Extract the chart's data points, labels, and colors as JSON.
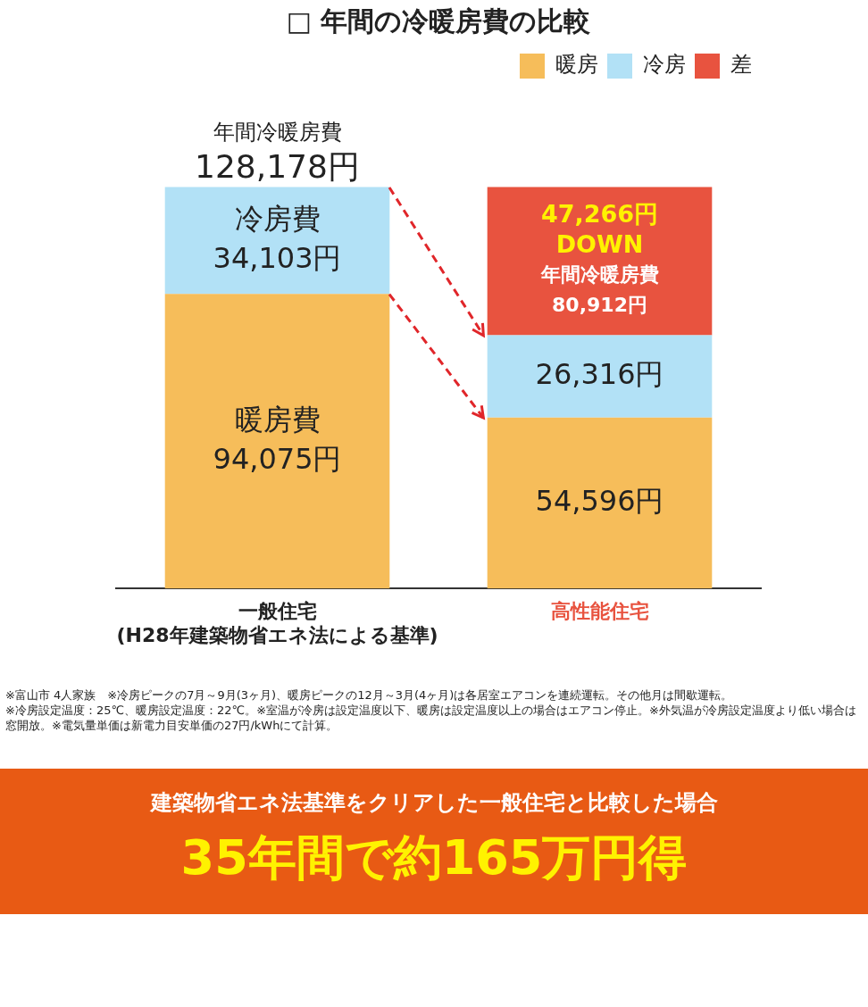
{
  "chart_data": {
    "type": "bar",
    "stacked": true,
    "title": "□ 年間の冷暖房費の比較",
    "legend": "top right",
    "categories": [
      "一般住宅\n(H28年建築物省エネ法による基準)",
      "高性能住宅"
    ],
    "series": [
      {
        "name": "暖房",
        "color": "#f6bd5a",
        "values": [
          94075,
          54596
        ],
        "value_labels": [
          "暖房費\n94,075円",
          "54,596円"
        ]
      },
      {
        "name": "冷房",
        "color": "#b2e1f6",
        "values": [
          34103,
          26316
        ],
        "value_labels": [
          "冷房費\n34,103円",
          "26,316円"
        ]
      },
      {
        "name": "差",
        "color": "#e8533f",
        "values": [
          null,
          47266
        ],
        "value_labels": [
          null,
          "47,266円\nDOWN\n年間冷暖房費\n80,912円"
        ]
      }
    ],
    "totals": [
      "年間冷暖房費\n128,178円",
      null
    ],
    "annotations": [
      "※富山市 4人家族　※冷房ピークの7月～9月(3ヶ月)、暖房ピークの12月～3月(4ヶ月)は各居室エアコンを連続運転。その他月は間歇運転。",
      "※冷房設定温度：25℃、暖房設定温度：22℃。※室温が冷房は設定温度以下、暖房は設定温度以上の場合はエアコン停止。※外気温が冷房設定温度より低い場合は窓開放。※電気量単価は新電力目安単価の27円/kWhにて計算。",
      "建築物省エネ法基準をクリアした一般住宅と比較した場合",
      "35年間で約165万円得"
    ]
  }
}
